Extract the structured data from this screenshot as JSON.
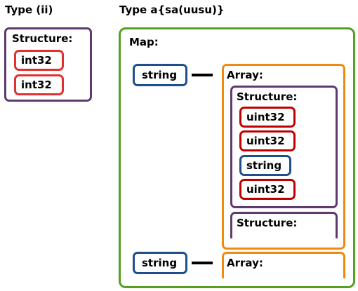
{
  "colors": {
    "structure": "#5e3a6e",
    "int": "#e03030",
    "uint": "#c00000",
    "string": "#1f4e8c",
    "map": "#55a020",
    "array": "#ef8a10"
  },
  "left": {
    "heading": "Type (ii)",
    "structure_label": "Structure:",
    "items": [
      "int32",
      "int32"
    ]
  },
  "right": {
    "heading": "Type a{sa(uusu)}",
    "map_label": "Map:",
    "entries": [
      {
        "key": "string",
        "array_label": "Array:",
        "structures": [
          {
            "label": "Structure:",
            "items": [
              "uint32",
              "uint32",
              "string",
              "uint32"
            ]
          },
          {
            "label": "Structure:"
          }
        ]
      },
      {
        "key": "string",
        "array_label": "Array:"
      }
    ]
  }
}
